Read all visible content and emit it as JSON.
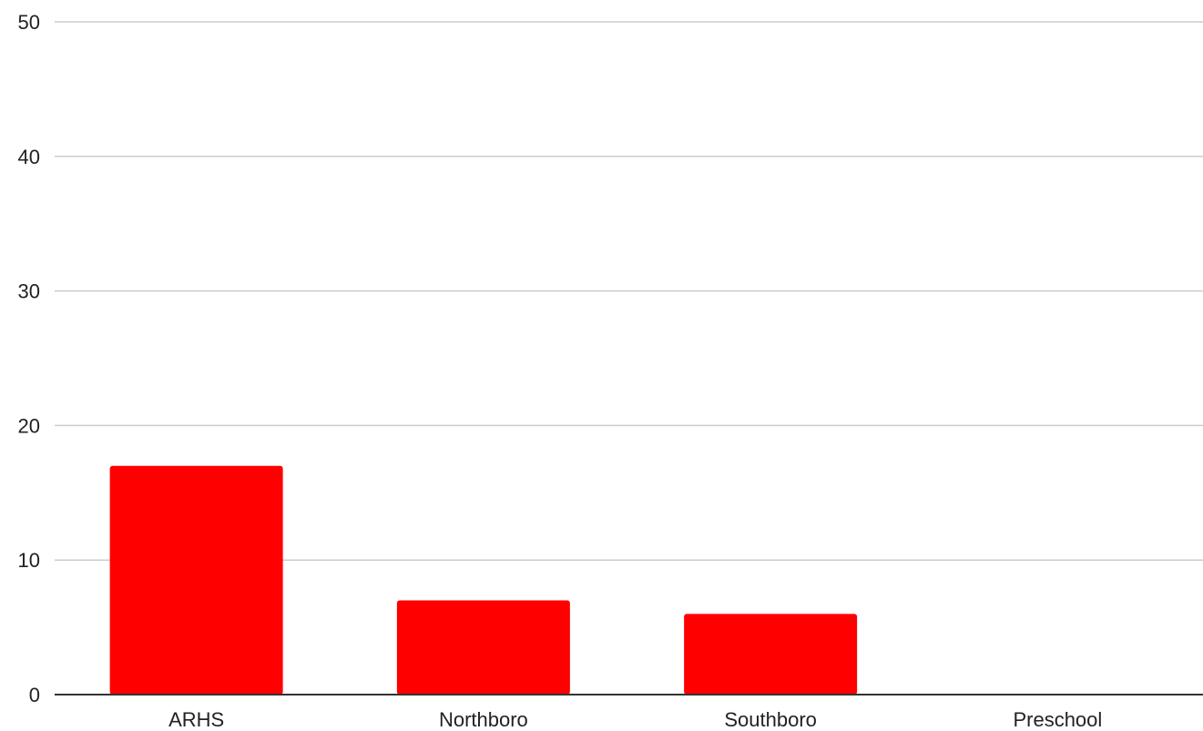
{
  "chart_data": {
    "type": "bar",
    "title": "",
    "xlabel": "",
    "ylabel": "",
    "categories": [
      "ARHS",
      "Northboro",
      "Southboro",
      "Preschool"
    ],
    "values": [
      17,
      7,
      6,
      0
    ],
    "ylim": [
      0,
      50
    ],
    "yticks": [
      0,
      10,
      20,
      30,
      40,
      50
    ],
    "grid": true,
    "legend": "none",
    "colors": {
      "bar": "#ff0000",
      "grid": "#cccccc",
      "axis": "#333333"
    }
  }
}
